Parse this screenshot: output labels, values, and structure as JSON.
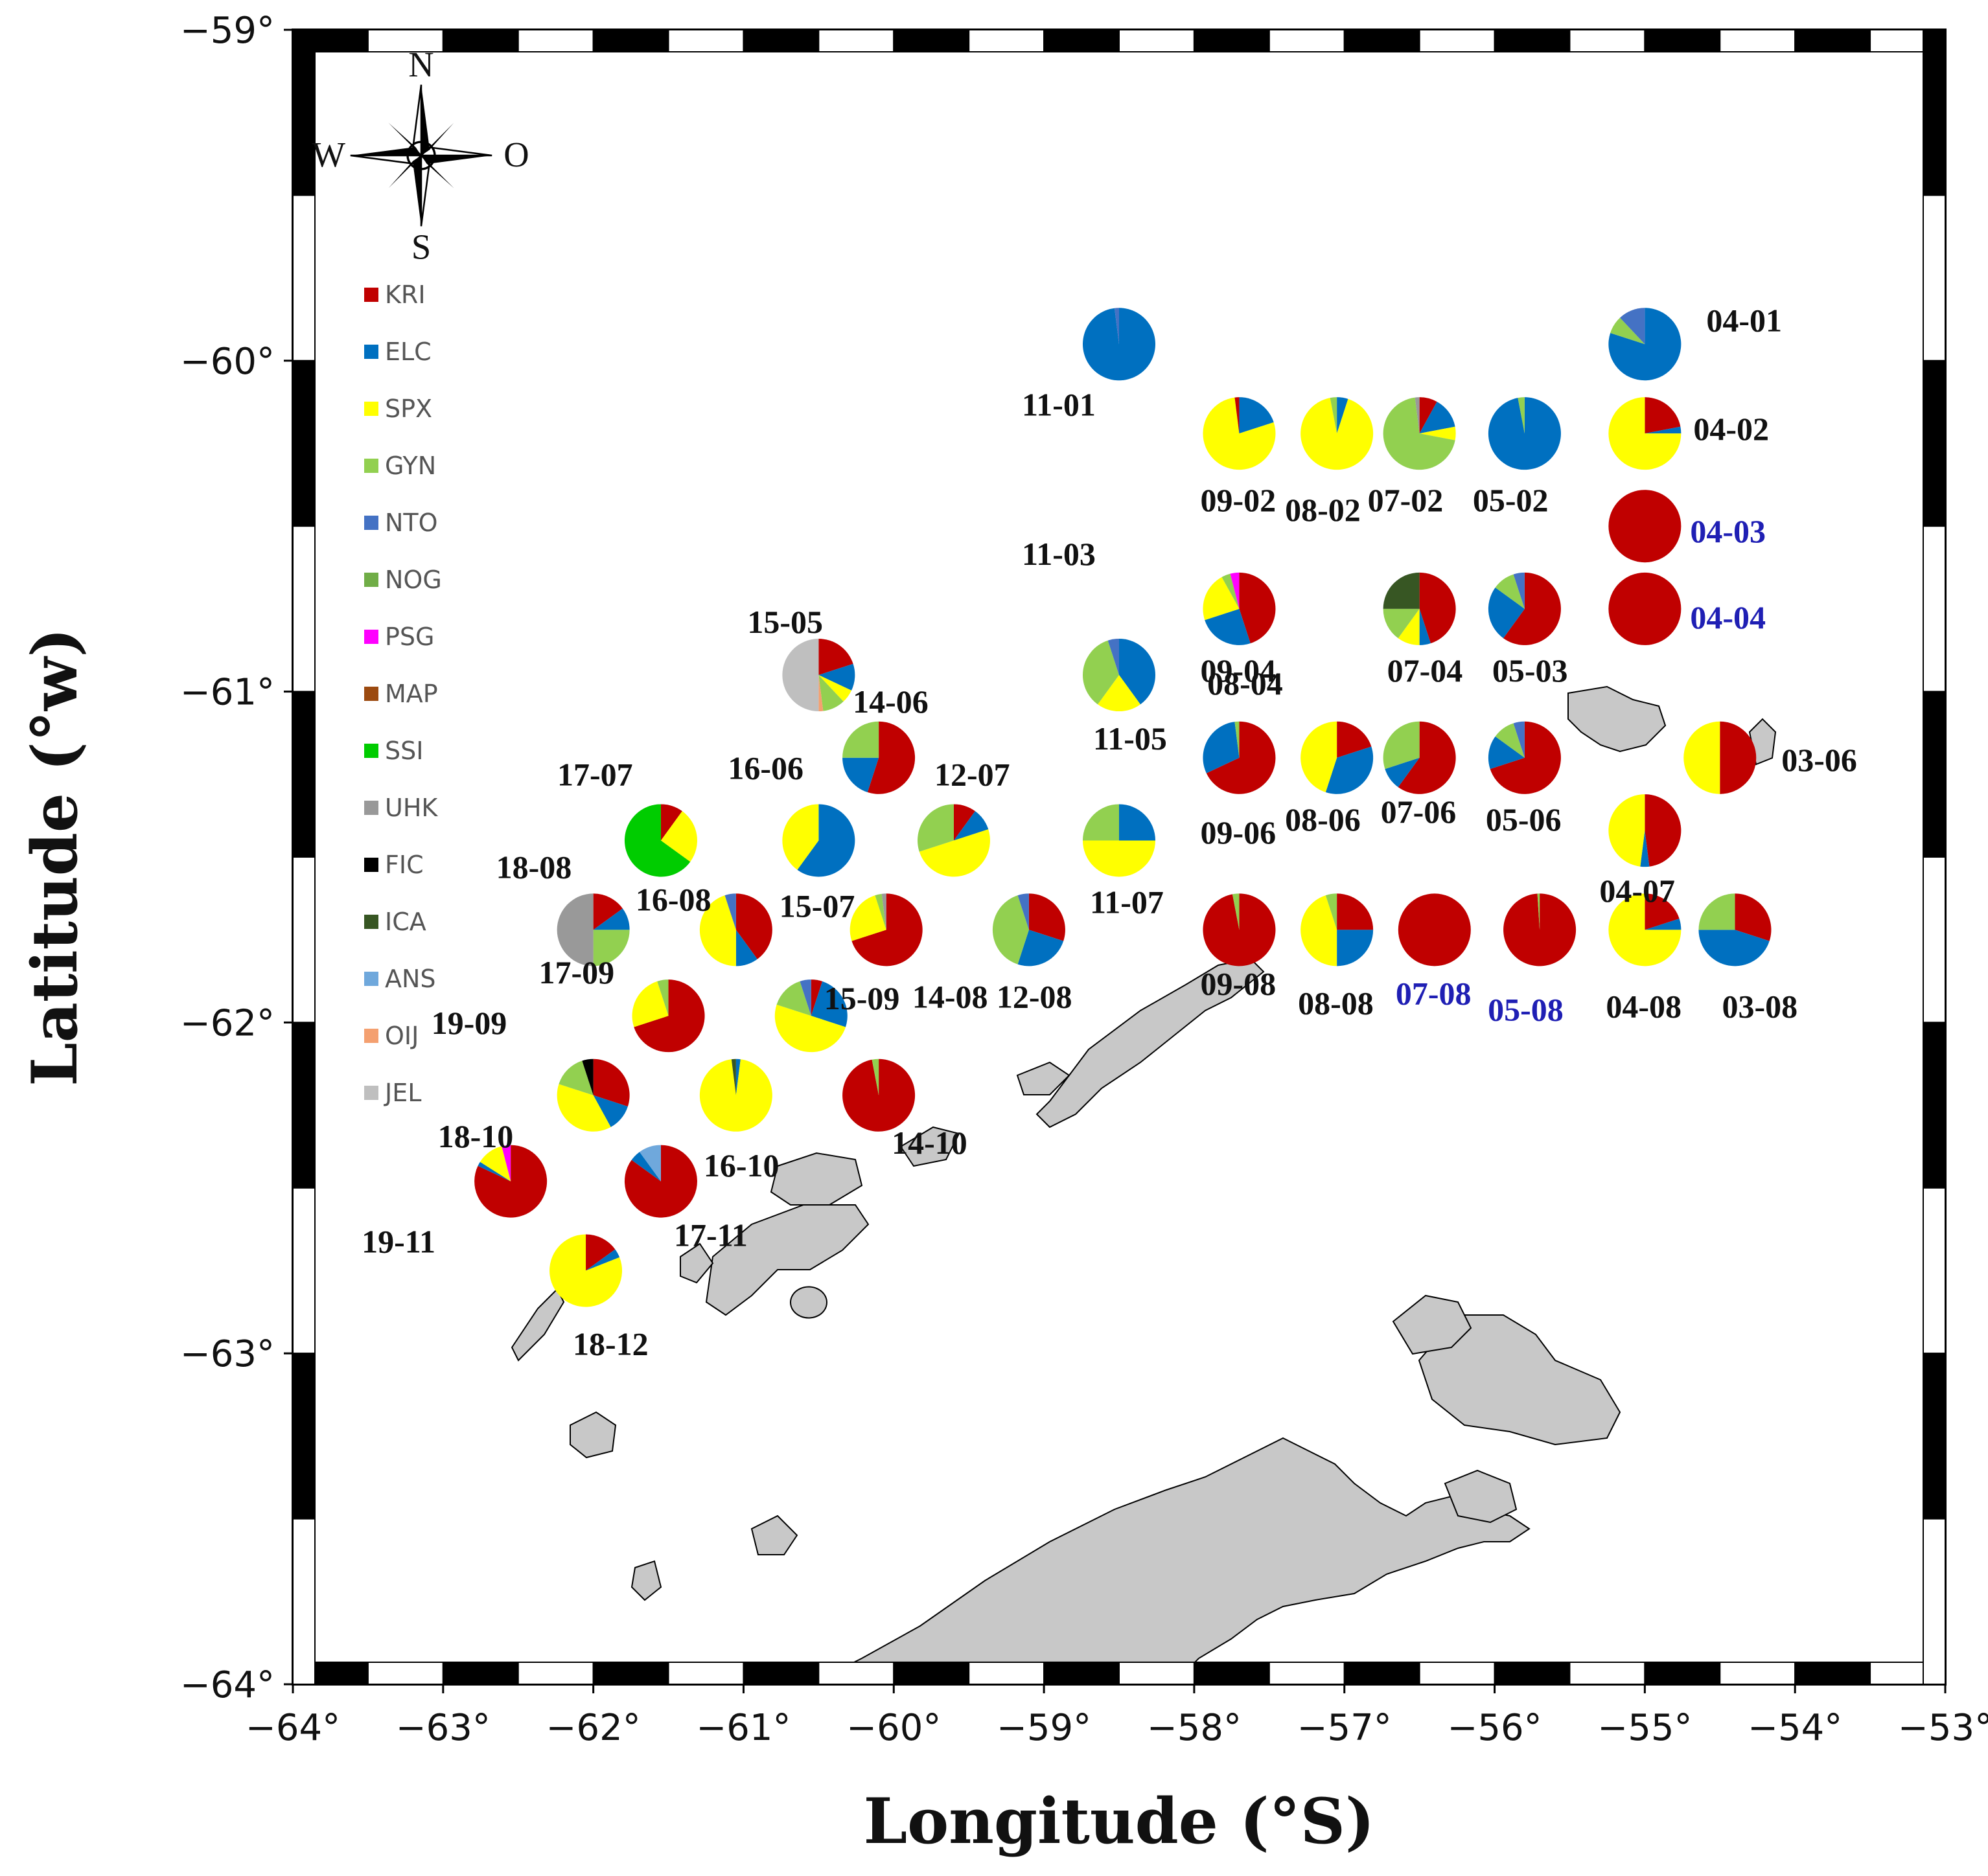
{
  "title": "",
  "colors": {
    "KRI": "#c00000",
    "ELC": "#0070c0",
    "SPX": "#ffff00",
    "GYN": "#92d050",
    "NTO": "#4472c4",
    "NOG": "#70ad47",
    "PSG": "#ff00ff",
    "MAP": "#9c4a10",
    "SSI": "#00cc00",
    "UHK": "#999999",
    "FIC": "#000000",
    "ICA": "#375623",
    "ANS": "#6fa8dc",
    "OIJ": "#f4a070",
    "JEL": "#bfbfbf",
    "land": "#c8c8c8",
    "highlight": "#1f1fb4"
  },
  "axes": {
    "x_label": "Longitude (°S)",
    "y_label": "Latitude (°w)",
    "x_ticks": [
      "−64°",
      "−63°",
      "−62°",
      "−61°",
      "−60°",
      "−59°",
      "−58°",
      "−57°",
      "−56°",
      "−55°",
      "−54°",
      "−53°"
    ],
    "y_ticks": [
      "−59°",
      "−60°",
      "−61°",
      "−62°",
      "−63°",
      "−64°"
    ],
    "x_range": [
      -64,
      -53
    ],
    "y_range": [
      -64,
      -59
    ]
  },
  "compass": {
    "n": "N",
    "s": "S",
    "w": "W",
    "e": "O"
  },
  "legend": [
    {
      "code": "KRI",
      "label": "KRI"
    },
    {
      "code": "ELC",
      "label": "ELC"
    },
    {
      "code": "SPX",
      "label": "SPX"
    },
    {
      "code": "GYN",
      "label": "GYN"
    },
    {
      "code": "NTO",
      "label": "NTO"
    },
    {
      "code": "NOG",
      "label": "NOG"
    },
    {
      "code": "PSG",
      "label": "PSG"
    },
    {
      "code": "MAP",
      "label": "MAP"
    },
    {
      "code": "SSI",
      "label": "SSI"
    },
    {
      "code": "UHK",
      "label": "UHK"
    },
    {
      "code": "FIC",
      "label": "FIC"
    },
    {
      "code": "ICA",
      "label": "ICA"
    },
    {
      "code": "ANS",
      "label": "ANS"
    },
    {
      "code": "OIJ",
      "label": "OIJ"
    },
    {
      "code": "JEL",
      "label": "JEL"
    }
  ],
  "stations": [
    {
      "id": "04-01",
      "lon": -55.0,
      "lat": -59.95,
      "highlight": false,
      "slices": [
        [
          "ELC",
          80
        ],
        [
          "GYN",
          8
        ],
        [
          "NTO",
          12
        ]
      ]
    },
    {
      "id": "11-01",
      "lon": -58.5,
      "lat": -59.95,
      "highlight": false,
      "slices": [
        [
          "ELC",
          98
        ],
        [
          "NTO",
          2
        ]
      ]
    },
    {
      "id": "04-02",
      "lon": -55.0,
      "lat": -60.22,
      "highlight": false,
      "slices": [
        [
          "KRI",
          22
        ],
        [
          "ELC",
          3
        ],
        [
          "SPX",
          75
        ]
      ]
    },
    {
      "id": "05-02",
      "lon": -55.8,
      "lat": -60.22,
      "highlight": false,
      "slices": [
        [
          "ELC",
          97
        ],
        [
          "GYN",
          3
        ]
      ]
    },
    {
      "id": "07-02",
      "lon": -56.5,
      "lat": -60.22,
      "highlight": false,
      "slices": [
        [
          "KRI",
          8
        ],
        [
          "ELC",
          14
        ],
        [
          "SPX",
          6
        ],
        [
          "GYN",
          70
        ],
        [
          "UHK",
          2
        ]
      ]
    },
    {
      "id": "08-02",
      "lon": -57.05,
      "lat": -60.22,
      "highlight": false,
      "slices": [
        [
          "ELC",
          5
        ],
        [
          "SPX",
          92
        ],
        [
          "GYN",
          3
        ]
      ]
    },
    {
      "id": "09-02",
      "lon": -57.7,
      "lat": -60.22,
      "highlight": false,
      "slices": [
        [
          "ELC",
          20
        ],
        [
          "SPX",
          78
        ],
        [
          "KRI",
          2
        ]
      ]
    },
    {
      "id": "04-03",
      "lon": -55.0,
      "lat": -60.5,
      "highlight": true,
      "slices": [
        [
          "KRI",
          100
        ]
      ]
    },
    {
      "id": "11-03",
      "lon": -58.5,
      "lat": -60.5,
      "highlight": false,
      "slices": []
    },
    {
      "id": "04-04",
      "lon": -55.0,
      "lat": -60.75,
      "highlight": true,
      "slices": [
        [
          "KRI",
          100
        ]
      ]
    },
    {
      "id": "05-03",
      "lon": -55.8,
      "lat": -60.75,
      "highlight": false,
      "slices": [
        [
          "KRI",
          60
        ],
        [
          "ELC",
          25
        ],
        [
          "GYN",
          10
        ],
        [
          "NTO",
          5
        ]
      ]
    },
    {
      "id": "07-04",
      "lon": -56.5,
      "lat": -60.75,
      "highlight": false,
      "slices": [
        [
          "KRI",
          45
        ],
        [
          "ELC",
          5
        ],
        [
          "SPX",
          10
        ],
        [
          "GYN",
          15
        ],
        [
          "ICA",
          25
        ]
      ]
    },
    {
      "id": "08-04",
      "lon": -57.05,
      "lat": -60.75,
      "highlight": false,
      "slices": []
    },
    {
      "id": "09-04",
      "lon": -57.7,
      "lat": -60.75,
      "highlight": false,
      "slices": [
        [
          "KRI",
          45
        ],
        [
          "ELC",
          25
        ],
        [
          "SPX",
          22
        ],
        [
          "GYN",
          4
        ],
        [
          "PSG",
          4
        ]
      ]
    },
    {
      "id": "11-05",
      "lon": -58.5,
      "lat": -60.95,
      "highlight": false,
      "slices": [
        [
          "ELC",
          40
        ],
        [
          "SPX",
          20
        ],
        [
          "GYN",
          35
        ],
        [
          "NTO",
          5
        ]
      ]
    },
    {
      "id": "15-05",
      "lon": -60.5,
      "lat": -60.95,
      "highlight": false,
      "slices": [
        [
          "KRI",
          20
        ],
        [
          "ELC",
          12
        ],
        [
          "SPX",
          6
        ],
        [
          "GYN",
          10
        ],
        [
          "OIJ",
          2
        ],
        [
          "JEL",
          50
        ]
      ]
    },
    {
      "id": "14-06",
      "lon": -60.1,
      "lat": -61.2,
      "highlight": false,
      "slices": [
        [
          "KRI",
          55
        ],
        [
          "ELC",
          20
        ],
        [
          "GYN",
          25
        ]
      ]
    },
    {
      "id": "16-06",
      "lon": -60.5,
      "lat": -61.45,
      "highlight": false,
      "slices": [
        [
          "ELC",
          60
        ],
        [
          "SPX",
          40
        ]
      ]
    },
    {
      "id": "17-07",
      "lon": -61.55,
      "lat": -61.45,
      "highlight": false,
      "slices": [
        [
          "KRI",
          10
        ],
        [
          "SPX",
          25
        ],
        [
          "SSI",
          65
        ]
      ]
    },
    {
      "id": "12-07",
      "lon": -59.6,
      "lat": -61.45,
      "highlight": false,
      "slices": [
        [
          "KRI",
          10
        ],
        [
          "ELC",
          10
        ],
        [
          "SPX",
          50
        ],
        [
          "GYN",
          30
        ]
      ]
    },
    {
      "id": "03-06",
      "lon": -54.5,
      "lat": -61.2,
      "highlight": false,
      "slices": [
        [
          "KRI",
          50
        ],
        [
          "SPX",
          50
        ]
      ]
    },
    {
      "id": "05-06",
      "lon": -55.8,
      "lat": -61.2,
      "highlight": false,
      "slices": [
        [
          "KRI",
          70
        ],
        [
          "ELC",
          15
        ],
        [
          "GYN",
          10
        ],
        [
          "NTO",
          5
        ]
      ]
    },
    {
      "id": "07-06",
      "lon": -56.5,
      "lat": -61.2,
      "highlight": false,
      "slices": [
        [
          "KRI",
          60
        ],
        [
          "ELC",
          10
        ],
        [
          "GYN",
          30
        ]
      ]
    },
    {
      "id": "08-06",
      "lon": -57.05,
      "lat": -61.2,
      "highlight": false,
      "slices": [
        [
          "KRI",
          20
        ],
        [
          "ELC",
          35
        ],
        [
          "SPX",
          45
        ]
      ]
    },
    {
      "id": "09-06",
      "lon": -57.7,
      "lat": -61.2,
      "highlight": false,
      "slices": [
        [
          "KRI",
          68
        ],
        [
          "ELC",
          30
        ],
        [
          "GYN",
          2
        ]
      ]
    },
    {
      "id": "04-07",
      "lon": -55.0,
      "lat": -61.42,
      "highlight": false,
      "slices": [
        [
          "KRI",
          48
        ],
        [
          "ELC",
          4
        ],
        [
          "SPX",
          48
        ]
      ]
    },
    {
      "id": "11-07",
      "lon": -58.5,
      "lat": -61.45,
      "highlight": false,
      "slices": [
        [
          "ELC",
          25
        ],
        [
          "SPX",
          50
        ],
        [
          "GYN",
          25
        ]
      ]
    },
    {
      "id": "18-08",
      "lon": -62.0,
      "lat": -61.72,
      "highlight": false,
      "slices": [
        [
          "KRI",
          15
        ],
        [
          "ELC",
          10
        ],
        [
          "GYN",
          25
        ],
        [
          "UHK",
          50
        ]
      ]
    },
    {
      "id": "16-08",
      "lon": -61.05,
      "lat": -61.72,
      "highlight": false,
      "slices": [
        [
          "KRI",
          40
        ],
        [
          "ELC",
          10
        ],
        [
          "SPX",
          45
        ],
        [
          "NTO",
          5
        ]
      ]
    },
    {
      "id": "15-07",
      "lon": -60.05,
      "lat": -61.72,
      "highlight": false,
      "slices": [
        [
          "KRI",
          70
        ],
        [
          "SPX",
          25
        ],
        [
          "GYN",
          3
        ],
        [
          "UHK",
          2
        ]
      ]
    },
    {
      "id": "14-08",
      "lon": -59.1,
      "lat": -61.72,
      "highlight": false,
      "slices": [
        [
          "KRI",
          30
        ],
        [
          "ELC",
          25
        ],
        [
          "GYN",
          40
        ],
        [
          "NTO",
          5
        ]
      ]
    },
    {
      "id": "09-08",
      "lon": -57.7,
      "lat": -61.72,
      "highlight": false,
      "slices": [
        [
          "KRI",
          97
        ],
        [
          "GYN",
          3
        ]
      ]
    },
    {
      "id": "08-08",
      "lon": -57.05,
      "lat": -61.72,
      "highlight": false,
      "slices": [
        [
          "KRI",
          25
        ],
        [
          "ELC",
          25
        ],
        [
          "SPX",
          45
        ],
        [
          "GYN",
          5
        ]
      ]
    },
    {
      "id": "07-08",
      "lon": -56.4,
      "lat": -61.72,
      "highlight": true,
      "slices": [
        [
          "KRI",
          100
        ]
      ]
    },
    {
      "id": "05-08",
      "lon": -55.7,
      "lat": -61.72,
      "highlight": true,
      "slices": [
        [
          "KRI",
          99
        ],
        [
          "GYN",
          1
        ]
      ]
    },
    {
      "id": "04-08",
      "lon": -55.0,
      "lat": -61.72,
      "highlight": false,
      "slices": [
        [
          "KRI",
          20
        ],
        [
          "ELC",
          5
        ],
        [
          "SPX",
          75
        ]
      ]
    },
    {
      "id": "03-08",
      "lon": -54.4,
      "lat": -61.72,
      "highlight": false,
      "slices": [
        [
          "KRI",
          30
        ],
        [
          "ELC",
          45
        ],
        [
          "GYN",
          25
        ]
      ]
    },
    {
      "id": "17-09",
      "lon": -61.5,
      "lat": -61.98,
      "highlight": false,
      "slices": [
        [
          "KRI",
          70
        ],
        [
          "SPX",
          25
        ],
        [
          "GYN",
          5
        ]
      ]
    },
    {
      "id": "15-09",
      "lon": -60.55,
      "lat": -61.98,
      "highlight": false,
      "slices": [
        [
          "KRI",
          5
        ],
        [
          "ELC",
          25
        ],
        [
          "SPX",
          50
        ],
        [
          "GYN",
          15
        ],
        [
          "NTO",
          5
        ]
      ]
    },
    {
      "id": "12-08",
      "lon": -59.1,
      "lat": -61.72,
      "highlight": false,
      "slices": []
    },
    {
      "id": "19-09",
      "lon": -62.0,
      "lat": -62.22,
      "highlight": false,
      "slices": [
        [
          "KRI",
          30
        ],
        [
          "ELC",
          12
        ],
        [
          "SPX",
          38
        ],
        [
          "GYN",
          15
        ],
        [
          "FIC",
          5
        ]
      ]
    },
    {
      "id": "16-10",
      "lon": -61.05,
      "lat": -62.22,
      "highlight": false,
      "slices": [
        [
          "ELC",
          2
        ],
        [
          "SPX",
          96
        ],
        [
          "ICA",
          2
        ]
      ]
    },
    {
      "id": "14-10",
      "lon": -60.1,
      "lat": -62.22,
      "highlight": false,
      "slices": [
        [
          "KRI",
          97
        ],
        [
          "GYN",
          3
        ]
      ]
    },
    {
      "id": "18-10",
      "lon": -62.0,
      "lat": -62.22,
      "highlight": false,
      "slices": []
    },
    {
      "id": "19-11",
      "lon": -62.55,
      "lat": -62.48,
      "highlight": false,
      "slices": [
        [
          "KRI",
          82
        ],
        [
          "ELC",
          2
        ],
        [
          "SPX",
          12
        ],
        [
          "PSG",
          4
        ]
      ]
    },
    {
      "id": "17-11",
      "lon": -61.55,
      "lat": -62.48,
      "highlight": false,
      "slices": [
        [
          "KRI",
          85
        ],
        [
          "ELC",
          5
        ],
        [
          "ANS",
          10
        ]
      ]
    },
    {
      "id": "18-12",
      "lon": -62.05,
      "lat": -62.75,
      "highlight": false,
      "slices": [
        [
          "KRI",
          15
        ],
        [
          "ELC",
          4
        ],
        [
          "SPX",
          81
        ]
      ]
    }
  ]
}
